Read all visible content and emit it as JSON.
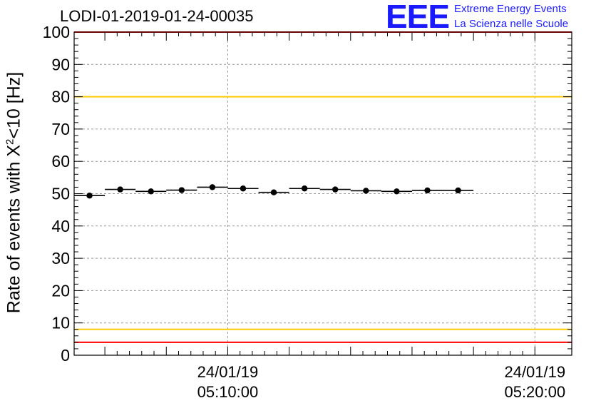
{
  "title": "LODI-01-2019-01-24-00035",
  "logo": {
    "letters": "EEE",
    "line1": "Extreme Energy Events",
    "line2": "La Scienza nelle Scuole"
  },
  "chart_data": {
    "type": "scatter",
    "title": "LODI-01-2019-01-24-00035",
    "ylabel": {
      "pre": "Rate of events with X",
      "sup": "2",
      "post": "<10 [Hz]"
    },
    "ylim": [
      0,
      100
    ],
    "yticks": [
      0,
      10,
      20,
      30,
      40,
      50,
      60,
      70,
      80,
      90,
      100
    ],
    "xlim_min": [
      5.0,
      21.2
    ],
    "xticks": [
      {
        "min": 10,
        "date": "24/01/19",
        "time": "05:10:00"
      },
      {
        "min": 20,
        "date": "24/01/19",
        "time": "05:20:00"
      }
    ],
    "grid": true,
    "reference_lines": [
      {
        "y": 100,
        "color": "#ff0000"
      },
      {
        "y": 80,
        "color": "#ffcc00"
      },
      {
        "y": 8,
        "color": "#ffcc00"
      },
      {
        "y": 4,
        "color": "#ff0000"
      }
    ],
    "bin_width_min": 1.0,
    "x_min": [
      5.5,
      6.5,
      7.5,
      8.5,
      9.5,
      10.5,
      11.5,
      12.5,
      13.5,
      14.5,
      15.5,
      16.5,
      17.5
    ],
    "values": [
      49.4,
      51.3,
      50.7,
      51.1,
      52.0,
      51.6,
      50.4,
      51.6,
      51.3,
      50.9,
      50.7,
      51.0,
      51.0
    ],
    "x_min_actual": [
      5.5,
      6.5,
      7.5,
      8.5,
      9.5,
      10.5,
      11.5,
      12.5,
      13.5,
      14.5,
      15.5,
      16.5,
      17.5
    ],
    "series": [
      {
        "x_min": [
          5.5,
          6.5,
          7.5,
          8.5,
          9.5,
          10.5,
          11.5,
          12.5,
          13.5,
          14.5,
          15.5,
          16.5,
          17.5
        ],
        "values": [
          49.4,
          51.3,
          50.7,
          51.1,
          52.0,
          51.6,
          50.4,
          51.6,
          51.3,
          50.9,
          50.7,
          51.0,
          51.0
        ]
      }
    ]
  }
}
